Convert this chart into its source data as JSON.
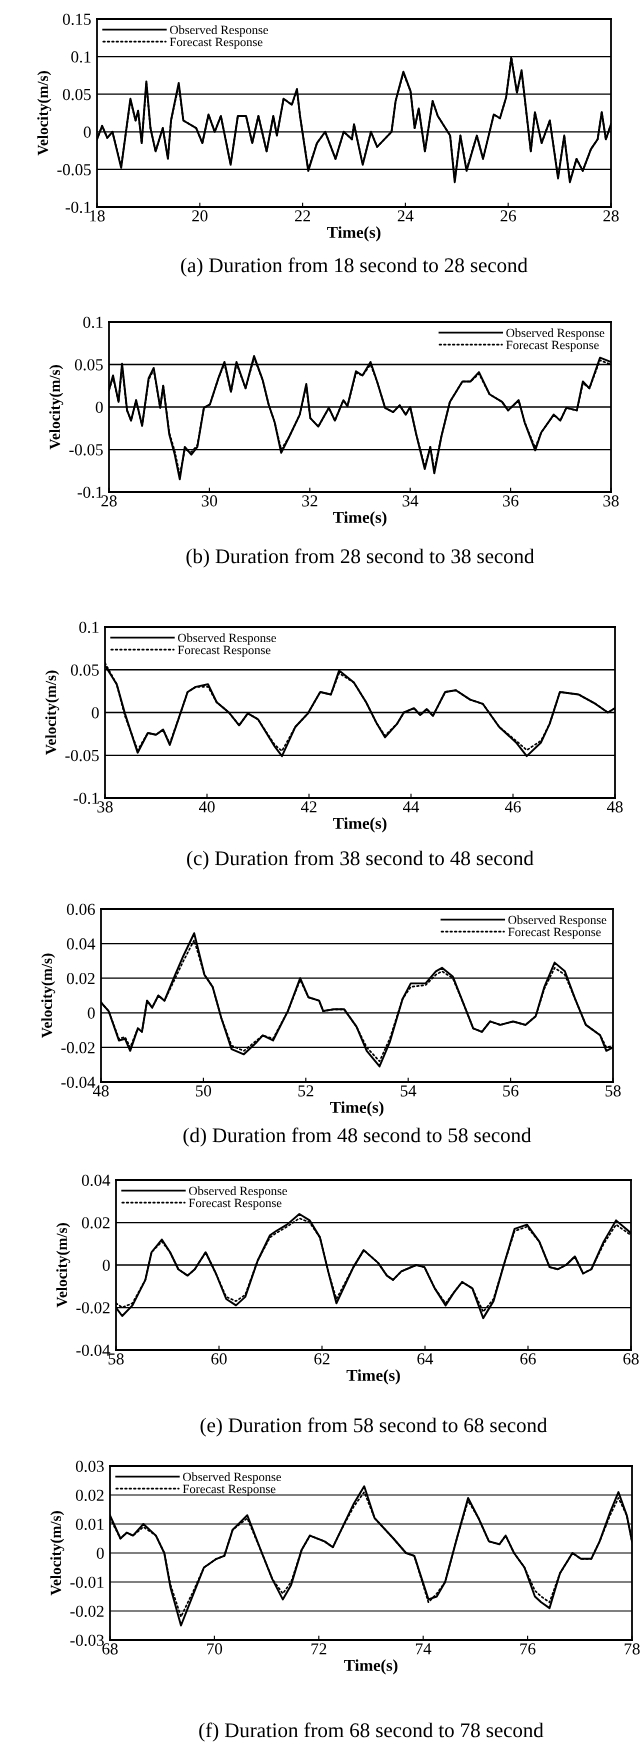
{
  "chart_data": [
    {
      "type": "line",
      "title": "(a) Duration from 18 second to 28 second",
      "xlabel": "Time(s)",
      "ylabel": "Velocity(m/s)",
      "x": [
        18.0,
        18.1,
        18.2,
        18.3,
        18.47,
        18.65,
        18.75,
        18.8,
        18.87,
        18.96,
        19.04,
        19.14,
        19.28,
        19.38,
        19.44,
        19.59,
        19.68,
        19.93,
        20.05,
        20.17,
        20.29,
        20.41,
        20.6,
        20.74,
        20.9,
        21.02,
        21.14,
        21.3,
        21.43,
        21.5,
        21.63,
        21.79,
        21.89,
        21.95,
        22.11,
        22.28,
        22.44,
        22.64,
        22.8,
        22.96,
        23.0,
        23.17,
        23.33,
        23.45,
        23.73,
        23.81,
        23.96,
        24.1,
        24.18,
        24.26,
        24.38,
        24.53,
        24.63,
        24.87,
        24.96,
        25.07,
        25.19,
        25.39,
        25.51,
        25.72,
        25.84,
        25.96,
        26.06,
        26.17,
        26.26,
        26.44,
        26.52,
        26.65,
        26.81,
        26.97,
        27.09,
        27.2,
        27.33,
        27.45,
        27.61,
        27.74,
        27.82,
        27.9,
        28.0
      ],
      "series": [
        {
          "name": "Observed Response",
          "color": "#000000",
          "line_style": "solid",
          "values": [
            -0.01,
            0.008,
            -0.008,
            0.0,
            -0.048,
            0.044,
            0.015,
            0.028,
            -0.015,
            0.067,
            0.005,
            -0.026,
            0.005,
            -0.036,
            0.015,
            0.065,
            0.015,
            0.005,
            -0.015,
            0.023,
            0.0,
            0.021,
            -0.044,
            0.021,
            0.021,
            -0.015,
            0.021,
            -0.026,
            0.021,
            -0.005,
            0.044,
            0.036,
            0.057,
            0.021,
            -0.052,
            -0.015,
            0.0,
            -0.036,
            0.0,
            -0.01,
            0.01,
            -0.044,
            0.0,
            -0.02,
            0.0,
            0.041,
            0.08,
            0.054,
            0.005,
            0.031,
            -0.026,
            0.041,
            0.021,
            -0.005,
            -0.067,
            -0.005,
            -0.052,
            -0.005,
            -0.036,
            0.023,
            0.018,
            0.046,
            0.098,
            0.052,
            0.082,
            -0.026,
            0.026,
            -0.015,
            0.015,
            -0.062,
            -0.005,
            -0.067,
            -0.036,
            -0.052,
            -0.023,
            -0.01,
            0.026,
            -0.01,
            0.01
          ]
        },
        {
          "name": "Forecast Response",
          "color": "#000000",
          "line_style": "dotted",
          "values": [
            -0.01,
            0.008,
            -0.008,
            0.0,
            -0.046,
            0.042,
            0.015,
            0.028,
            -0.015,
            0.064,
            0.005,
            -0.026,
            0.005,
            -0.035,
            0.015,
            0.062,
            0.015,
            0.005,
            -0.015,
            0.023,
            0.0,
            0.021,
            -0.043,
            0.021,
            0.021,
            -0.015,
            0.021,
            -0.026,
            0.021,
            -0.005,
            0.044,
            0.036,
            0.055,
            0.021,
            -0.05,
            -0.015,
            0.0,
            -0.036,
            0.0,
            -0.01,
            0.01,
            -0.043,
            0.0,
            -0.02,
            0.0,
            0.041,
            0.078,
            0.054,
            0.005,
            0.031,
            -0.026,
            0.041,
            0.021,
            -0.005,
            -0.064,
            -0.005,
            -0.05,
            -0.005,
            -0.036,
            0.023,
            0.018,
            0.046,
            0.1,
            0.052,
            0.08,
            -0.026,
            0.026,
            -0.015,
            0.015,
            -0.06,
            -0.005,
            -0.065,
            -0.036,
            -0.052,
            -0.023,
            -0.01,
            0.026,
            -0.01,
            0.01
          ]
        }
      ],
      "xlim": [
        18,
        28
      ],
      "ylim": [
        -0.1,
        0.15
      ],
      "xticks": [
        18,
        20,
        22,
        24,
        26,
        28
      ],
      "yticks": [
        -0.1,
        -0.05,
        0,
        0.05,
        0.1,
        0.15
      ],
      "grid": "y",
      "legend": "top left"
    },
    {
      "type": "line",
      "title": "(b) Duration from 28 second to 38 second",
      "xlabel": "Time(s)",
      "ylabel": "Velocity(m/s)",
      "x": [
        28.0,
        28.08,
        28.19,
        28.26,
        28.36,
        28.44,
        28.54,
        28.66,
        28.79,
        28.89,
        29.02,
        29.08,
        29.2,
        29.31,
        29.41,
        29.51,
        29.64,
        29.76,
        29.89,
        30.01,
        30.18,
        30.3,
        30.43,
        30.54,
        30.72,
        30.89,
        31.06,
        31.18,
        31.3,
        31.43,
        31.59,
        31.8,
        31.93,
        32.01,
        32.17,
        32.38,
        32.5,
        32.67,
        32.75,
        32.92,
        33.05,
        33.21,
        33.34,
        33.5,
        33.66,
        33.79,
        33.91,
        34.0,
        34.12,
        34.29,
        34.4,
        34.48,
        34.62,
        34.79,
        35.04,
        35.2,
        35.37,
        35.58,
        35.83,
        35.95,
        36.16,
        36.28,
        36.49,
        36.61,
        36.86,
        36.99,
        37.11,
        37.32,
        37.44,
        37.57,
        37.78,
        38.0
      ],
      "series": [
        {
          "name": "Observed Response",
          "color": "#000000",
          "line_style": "solid",
          "values": [
            0.02,
            0.037,
            0.006,
            0.051,
            -0.004,
            -0.016,
            0.008,
            -0.022,
            0.034,
            0.046,
            -0.001,
            0.025,
            -0.032,
            -0.056,
            -0.085,
            -0.047,
            -0.056,
            -0.047,
            -0.001,
            0.003,
            0.034,
            0.053,
            0.018,
            0.053,
            0.022,
            0.06,
            0.032,
            0.003,
            -0.018,
            -0.054,
            -0.035,
            -0.009,
            0.027,
            -0.013,
            -0.023,
            -0.001,
            -0.016,
            0.008,
            0.001,
            0.042,
            0.037,
            0.053,
            0.03,
            -0.001,
            -0.006,
            0.002,
            -0.009,
            0.0,
            -0.032,
            -0.073,
            -0.047,
            -0.078,
            -0.035,
            0.006,
            0.03,
            0.03,
            0.041,
            0.015,
            0.006,
            -0.004,
            0.008,
            -0.018,
            -0.051,
            -0.03,
            -0.009,
            -0.016,
            -0.001,
            -0.004,
            0.03,
            0.022,
            0.058,
            0.053
          ]
        },
        {
          "name": "Forecast Response",
          "color": "#000000",
          "line_style": "dotted",
          "values": [
            0.02,
            0.035,
            0.006,
            0.048,
            -0.004,
            -0.016,
            0.008,
            -0.022,
            0.032,
            0.044,
            -0.001,
            0.025,
            -0.03,
            -0.052,
            -0.08,
            -0.05,
            -0.053,
            -0.045,
            -0.001,
            0.003,
            0.034,
            0.051,
            0.018,
            0.051,
            0.022,
            0.058,
            0.032,
            0.003,
            -0.018,
            -0.05,
            -0.035,
            -0.009,
            0.025,
            -0.013,
            -0.023,
            -0.001,
            -0.016,
            0.008,
            0.001,
            0.04,
            0.037,
            0.05,
            0.03,
            -0.001,
            -0.006,
            0.002,
            -0.009,
            0.0,
            -0.032,
            -0.07,
            -0.047,
            -0.074,
            -0.035,
            0.006,
            0.03,
            0.03,
            0.039,
            0.015,
            0.006,
            -0.004,
            0.008,
            -0.018,
            -0.048,
            -0.03,
            -0.009,
            -0.016,
            -0.001,
            -0.004,
            0.028,
            0.022,
            0.055,
            0.05
          ]
        }
      ],
      "xlim": [
        28,
        38
      ],
      "ylim": [
        -0.1,
        0.1
      ],
      "xticks": [
        28,
        30,
        32,
        34,
        36,
        38
      ],
      "yticks": [
        -0.1,
        -0.05,
        0,
        0.05,
        0.1
      ],
      "grid": "y",
      "legend": "top right"
    },
    {
      "type": "line",
      "title": "(c) Duration from 38 second to 48 second",
      "xlabel": "Time(s)",
      "ylabel": "Velocity(m/s)",
      "x": [
        38.0,
        38.23,
        38.39,
        38.64,
        38.84,
        39.0,
        39.14,
        39.27,
        39.45,
        39.62,
        39.78,
        40.02,
        40.19,
        40.43,
        40.63,
        40.8,
        41.0,
        41.33,
        41.47,
        41.73,
        41.98,
        42.22,
        42.43,
        42.59,
        42.88,
        43.12,
        43.33,
        43.49,
        43.73,
        43.86,
        44.06,
        44.18,
        44.31,
        44.43,
        44.67,
        44.88,
        45.16,
        45.41,
        45.73,
        46.06,
        46.27,
        46.55,
        46.72,
        46.92,
        47.29,
        47.62,
        47.86,
        48.0
      ],
      "series": [
        {
          "name": "Observed Response",
          "color": "#000000",
          "line_style": "solid",
          "values": [
            0.055,
            0.033,
            -0.001,
            -0.047,
            -0.024,
            -0.026,
            -0.02,
            -0.038,
            -0.006,
            0.024,
            0.03,
            0.033,
            0.012,
            0.0,
            -0.015,
            -0.001,
            -0.008,
            -0.04,
            -0.051,
            -0.017,
            -0.001,
            0.024,
            0.021,
            0.049,
            0.035,
            0.012,
            -0.013,
            -0.029,
            -0.013,
            0.0,
            0.005,
            -0.003,
            0.004,
            -0.004,
            0.024,
            0.026,
            0.015,
            0.01,
            -0.017,
            -0.035,
            -0.051,
            -0.035,
            -0.013,
            0.024,
            0.021,
            0.01,
            0.0,
            0.005
          ]
        },
        {
          "name": "Forecast Response",
          "color": "#000000",
          "line_style": "dotted",
          "values": [
            0.058,
            0.033,
            -0.004,
            -0.044,
            -0.024,
            -0.026,
            -0.02,
            -0.036,
            -0.006,
            0.024,
            0.03,
            0.03,
            0.012,
            0.0,
            -0.015,
            -0.001,
            -0.008,
            -0.038,
            -0.045,
            -0.017,
            -0.001,
            0.024,
            0.021,
            0.046,
            0.035,
            0.012,
            -0.013,
            -0.027,
            -0.013,
            0.0,
            0.005,
            -0.003,
            0.004,
            -0.004,
            0.024,
            0.026,
            0.015,
            0.01,
            -0.017,
            -0.033,
            -0.044,
            -0.033,
            -0.013,
            0.024,
            0.021,
            0.01,
            0.0,
            0.005
          ]
        }
      ],
      "xlim": [
        38,
        48
      ],
      "ylim": [
        -0.1,
        0.1
      ],
      "xticks": [
        38,
        40,
        42,
        44,
        46,
        48
      ],
      "yticks": [
        -0.1,
        -0.05,
        0,
        0.05,
        0.1
      ],
      "grid": "y",
      "legend": "top left"
    },
    {
      "type": "line",
      "title": "(d) Duration from 48 second to 58 second",
      "xlabel": "Time(s)",
      "ylabel": "Velocity(m/s)",
      "x": [
        48.0,
        48.15,
        48.35,
        48.47,
        48.57,
        48.72,
        48.8,
        48.9,
        49.0,
        49.12,
        49.24,
        49.45,
        49.61,
        49.82,
        50.02,
        50.18,
        50.35,
        50.55,
        50.79,
        51.04,
        51.16,
        51.36,
        51.65,
        51.89,
        52.05,
        52.26,
        52.34,
        52.54,
        52.75,
        52.99,
        53.19,
        53.44,
        53.64,
        53.89,
        54.05,
        54.34,
        54.54,
        54.66,
        54.87,
        55.07,
        55.27,
        55.44,
        55.6,
        55.8,
        56.05,
        56.29,
        56.49,
        56.66,
        56.86,
        57.06,
        57.26,
        57.47,
        57.75,
        57.87,
        58.0
      ],
      "series": [
        {
          "name": "Observed Response",
          "color": "#000000",
          "line_style": "solid",
          "values": [
            0.006,
            0.001,
            -0.016,
            -0.015,
            -0.022,
            -0.009,
            -0.011,
            0.007,
            0.003,
            0.01,
            0.007,
            0.022,
            0.033,
            0.046,
            0.022,
            0.015,
            -0.003,
            -0.021,
            -0.024,
            -0.017,
            -0.013,
            -0.016,
            0.001,
            0.02,
            0.009,
            0.007,
            0.001,
            0.002,
            0.002,
            -0.008,
            -0.022,
            -0.031,
            -0.017,
            0.008,
            0.017,
            0.017,
            0.024,
            0.026,
            0.021,
            0.006,
            -0.009,
            -0.011,
            -0.005,
            -0.007,
            -0.005,
            -0.007,
            -0.002,
            0.015,
            0.029,
            0.024,
            0.008,
            -0.007,
            -0.013,
            -0.022,
            -0.02
          ]
        },
        {
          "name": "Forecast Response",
          "color": "#000000",
          "line_style": "dotted",
          "values": [
            0.006,
            0.001,
            -0.015,
            -0.014,
            -0.02,
            -0.009,
            -0.011,
            0.007,
            0.003,
            0.01,
            0.007,
            0.02,
            0.03,
            0.042,
            0.022,
            0.015,
            -0.003,
            -0.019,
            -0.022,
            -0.016,
            -0.013,
            -0.015,
            0.001,
            0.019,
            0.009,
            0.007,
            0.001,
            0.002,
            0.002,
            -0.008,
            -0.02,
            -0.028,
            -0.015,
            0.008,
            0.015,
            0.016,
            0.022,
            0.024,
            0.02,
            0.006,
            -0.009,
            -0.011,
            -0.005,
            -0.007,
            -0.005,
            -0.007,
            -0.002,
            0.014,
            0.026,
            0.022,
            0.008,
            -0.007,
            -0.013,
            -0.02,
            -0.019
          ]
        }
      ],
      "xlim": [
        48,
        58
      ],
      "ylim": [
        -0.04,
        0.06
      ],
      "xticks": [
        48,
        50,
        52,
        54,
        56,
        58
      ],
      "yticks": [
        -0.04,
        -0.02,
        0,
        0.02,
        0.04,
        0.06
      ],
      "grid": "y",
      "legend": "top right"
    },
    {
      "type": "line",
      "title": "(e) Duration from 58 second to 68 second",
      "xlabel": "Time(s)",
      "ylabel": "Velocity(m/s)",
      "x": [
        58.0,
        58.12,
        58.32,
        58.57,
        58.69,
        58.89,
        59.05,
        59.21,
        59.39,
        59.53,
        59.74,
        59.94,
        60.14,
        60.33,
        60.51,
        60.75,
        60.99,
        61.11,
        61.32,
        61.56,
        61.76,
        61.96,
        62.12,
        62.28,
        62.61,
        62.81,
        63.09,
        63.26,
        63.38,
        63.54,
        63.83,
        63.99,
        64.19,
        64.4,
        64.56,
        64.72,
        64.92,
        65.13,
        65.33,
        65.53,
        65.74,
        65.98,
        66.22,
        66.42,
        66.58,
        66.74,
        66.91,
        67.07,
        67.23,
        67.47,
        67.71,
        68.0
      ],
      "series": [
        {
          "name": "Observed Response",
          "color": "#000000",
          "line_style": "solid",
          "values": [
            -0.02,
            -0.024,
            -0.019,
            -0.007,
            0.006,
            0.012,
            0.006,
            -0.002,
            -0.005,
            -0.002,
            0.006,
            -0.004,
            -0.016,
            -0.019,
            -0.015,
            0.002,
            0.014,
            0.016,
            0.019,
            0.024,
            0.021,
            0.013,
            -0.003,
            -0.018,
            -0.001,
            0.007,
            0.001,
            -0.005,
            -0.007,
            -0.003,
            0.0,
            -0.001,
            -0.011,
            -0.019,
            -0.013,
            -0.008,
            -0.011,
            -0.025,
            -0.017,
            0.0,
            0.017,
            0.019,
            0.011,
            -0.001,
            -0.002,
            0.0,
            0.004,
            -0.004,
            -0.002,
            0.011,
            0.021,
            0.015
          ]
        },
        {
          "name": "Forecast Response",
          "color": "#000000",
          "line_style": "dotted",
          "values": [
            -0.018,
            -0.02,
            -0.018,
            -0.007,
            0.006,
            0.011,
            0.006,
            -0.002,
            -0.005,
            -0.002,
            0.006,
            -0.004,
            -0.015,
            -0.017,
            -0.014,
            0.002,
            0.013,
            0.015,
            0.018,
            0.022,
            0.02,
            0.013,
            -0.003,
            -0.016,
            -0.001,
            0.007,
            0.001,
            -0.005,
            -0.007,
            -0.003,
            0.0,
            -0.001,
            -0.011,
            -0.018,
            -0.013,
            -0.008,
            -0.011,
            -0.022,
            -0.016,
            0.0,
            0.016,
            0.018,
            0.011,
            -0.001,
            -0.002,
            0.0,
            0.004,
            -0.004,
            -0.002,
            0.01,
            0.019,
            0.014
          ]
        }
      ],
      "xlim": [
        58,
        68
      ],
      "ylim": [
        -0.04,
        0.04
      ],
      "xticks": [
        58,
        60,
        62,
        64,
        66,
        68
      ],
      "yticks": [
        -0.04,
        -0.02,
        0,
        0.02,
        0.04
      ],
      "grid": "y",
      "legend": "top left"
    },
    {
      "type": "line",
      "title": "(f) Duration from 68 second to 78 second",
      "xlabel": "Time(s)",
      "ylabel": "Velocity(m/s)",
      "x": [
        68.0,
        68.2,
        68.32,
        68.44,
        68.64,
        68.88,
        69.04,
        69.16,
        69.36,
        69.6,
        69.8,
        70.04,
        70.19,
        70.35,
        70.63,
        70.91,
        71.11,
        71.31,
        71.47,
        71.67,
        71.83,
        72.11,
        72.27,
        72.43,
        72.67,
        72.87,
        73.07,
        73.43,
        73.67,
        73.83,
        74.1,
        74.26,
        74.42,
        74.66,
        74.86,
        75.06,
        75.26,
        75.46,
        75.58,
        75.74,
        75.94,
        76.14,
        76.26,
        76.42,
        76.62,
        76.86,
        77.02,
        77.22,
        77.38,
        77.58,
        77.74,
        77.9,
        78.0
      ],
      "series": [
        {
          "name": "Observed Response",
          "color": "#000000",
          "line_style": "solid",
          "values": [
            0.013,
            0.005,
            0.007,
            0.006,
            0.01,
            0.006,
            0.0,
            -0.012,
            -0.025,
            -0.014,
            -0.005,
            -0.002,
            -0.001,
            0.008,
            0.013,
            0.0,
            -0.009,
            -0.016,
            -0.011,
            0.001,
            0.006,
            0.004,
            0.002,
            0.008,
            0.017,
            0.023,
            0.012,
            0.005,
            0.0,
            -0.001,
            -0.016,
            -0.015,
            -0.01,
            0.006,
            0.019,
            0.012,
            0.004,
            0.003,
            0.006,
            0.0,
            -0.005,
            -0.015,
            -0.017,
            -0.019,
            -0.007,
            0.0,
            -0.002,
            -0.002,
            0.004,
            0.014,
            0.021,
            0.013,
            0.004
          ]
        },
        {
          "name": "Forecast Response",
          "color": "#000000",
          "line_style": "dotted",
          "values": [
            0.012,
            0.005,
            0.007,
            0.006,
            0.009,
            0.006,
            0.0,
            -0.011,
            -0.022,
            -0.013,
            -0.005,
            -0.002,
            -0.001,
            0.008,
            0.012,
            0.0,
            -0.009,
            -0.014,
            -0.01,
            0.001,
            0.006,
            0.004,
            0.002,
            0.008,
            0.016,
            0.021,
            0.012,
            0.005,
            0.0,
            -0.001,
            -0.017,
            -0.014,
            -0.01,
            0.006,
            0.018,
            0.012,
            0.004,
            0.003,
            0.006,
            0.0,
            -0.005,
            -0.013,
            -0.015,
            -0.017,
            -0.007,
            0.0,
            -0.002,
            -0.002,
            0.004,
            0.013,
            0.019,
            0.013,
            0.004
          ]
        }
      ],
      "xlim": [
        68,
        78
      ],
      "ylim": [
        -0.03,
        0.03
      ],
      "xticks": [
        68,
        70,
        72,
        74,
        76,
        78
      ],
      "yticks": [
        -0.03,
        -0.02,
        -0.01,
        0,
        0.01,
        0.02,
        0.03
      ],
      "grid": "y",
      "legend": "top left"
    }
  ]
}
